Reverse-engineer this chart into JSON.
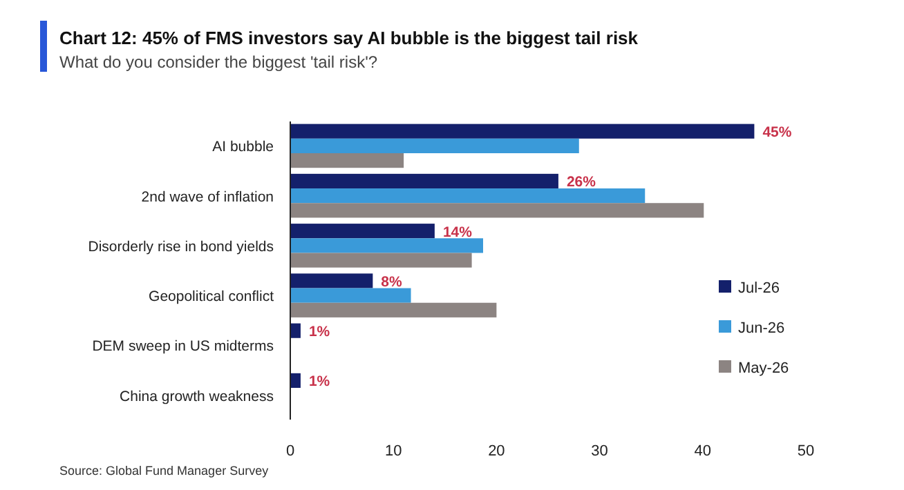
{
  "chart_data": {
    "type": "bar",
    "orientation": "horizontal",
    "title": "Chart 12: 45% of FMS investors say AI bubble is the biggest tail risk",
    "subtitle": "What do you consider the biggest 'tail risk'?",
    "categories": [
      "AI bubble",
      "2nd wave of inflation",
      "Disorderly rise in bond yields",
      "Geopolitical conflict",
      "DEM sweep in US midterms",
      "China growth weakness"
    ],
    "series": [
      {
        "name": "Jul-26",
        "color": "#14206b",
        "values": [
          45,
          26,
          14,
          8,
          1,
          1
        ],
        "value_labels": [
          "45%",
          "26%",
          "14%",
          "8%",
          "1%",
          "1%"
        ]
      },
      {
        "name": "Jun-26",
        "color": "#3a9ad9",
        "values": [
          28,
          34.4,
          18.7,
          11.7,
          null,
          null
        ]
      },
      {
        "name": "May-26",
        "color": "#8c8482",
        "values": [
          11,
          40.1,
          17.6,
          20,
          null,
          null
        ]
      }
    ],
    "xlim": [
      0,
      50
    ],
    "xticks": [
      0,
      10,
      20,
      30,
      40,
      50
    ],
    "grid": false,
    "legend": "right",
    "annotations": [
      "Source: Global Fund Manager Survey"
    ]
  }
}
